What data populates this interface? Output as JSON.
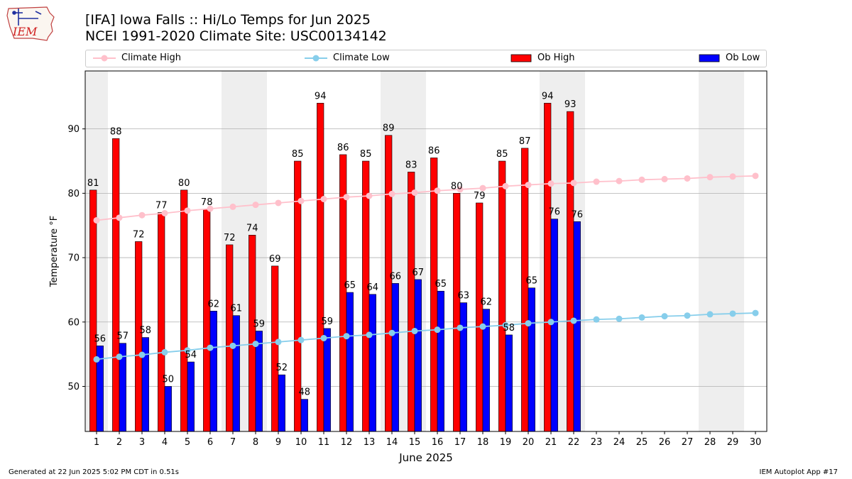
{
  "header": {
    "title_line1": "[IFA] Iowa Falls :: Hi/Lo Temps for Jun 2025",
    "title_line2": "NCEI 1991-2020 Climate Site: USC00134142",
    "logo_text": "IEM"
  },
  "legend": {
    "climate_high": "Climate High",
    "climate_low": "Climate Low",
    "ob_high": "Ob High",
    "ob_low": "Ob Low"
  },
  "colors": {
    "ob_high": "#ff0000",
    "ob_low": "#0000ff",
    "climate_high": "#ffc0cb",
    "climate_low": "#87ceeb",
    "weekend_shade": "#eeeeee",
    "grid": "#b0b0b0"
  },
  "footer": {
    "generated": "Generated at 22 Jun 2025 5:02 PM CDT in 0.51s",
    "app": "IEM Autoplot App #17"
  },
  "chart_data": {
    "type": "bar",
    "xlabel": "June 2025",
    "ylabel": "Temperature °F",
    "ylim": [
      43,
      99
    ],
    "yticks": [
      50,
      60,
      70,
      80,
      90
    ],
    "xlim": [
      0.5,
      30.5
    ],
    "grid": "horizontal",
    "legend_position": "top",
    "days": [
      1,
      2,
      3,
      4,
      5,
      6,
      7,
      8,
      9,
      10,
      11,
      12,
      13,
      14,
      15,
      16,
      17,
      18,
      19,
      20,
      21,
      22,
      23,
      24,
      25,
      26,
      27,
      28,
      29,
      30
    ],
    "shaded_day_ranges": [
      [
        0.5,
        1.5
      ],
      [
        6.5,
        8.5
      ],
      [
        13.5,
        15.5
      ],
      [
        20.5,
        22.5
      ],
      [
        27.5,
        29.5
      ]
    ],
    "series": [
      {
        "name": "Ob High",
        "kind": "bar",
        "values": [
          80.5,
          88.5,
          72.5,
          77,
          80.5,
          77.5,
          72,
          73.5,
          68.7,
          85,
          94,
          86,
          85,
          89,
          83.3,
          85.5,
          80,
          78.5,
          85,
          87,
          94,
          92.7
        ],
        "labels": [
          "81",
          "88",
          "72",
          "77",
          "80",
          "78",
          "72",
          "74",
          "69",
          "85",
          "94",
          "86",
          "85",
          "89",
          "83",
          "86",
          "80",
          "79",
          "85",
          "87",
          "94",
          "93"
        ]
      },
      {
        "name": "Ob Low",
        "kind": "bar",
        "values": [
          56.3,
          56.7,
          57.6,
          50,
          53.8,
          61.7,
          61,
          58.6,
          51.8,
          48,
          59,
          64.6,
          64.3,
          66,
          66.6,
          64.8,
          63,
          62,
          58,
          65.3,
          76,
          75.6
        ],
        "labels": [
          "56",
          "57",
          "58",
          "50",
          "54",
          "62",
          "61",
          "59",
          "52",
          "48",
          "59",
          "65",
          "64",
          "66",
          "67",
          "65",
          "63",
          "62",
          "58",
          "65",
          "76",
          "76"
        ]
      },
      {
        "name": "Climate High",
        "kind": "line",
        "values": [
          75.8,
          76.2,
          76.6,
          76.9,
          77.3,
          77.6,
          77.9,
          78.2,
          78.5,
          78.8,
          79.1,
          79.4,
          79.6,
          79.9,
          80.1,
          80.4,
          80.6,
          80.8,
          81.1,
          81.3,
          81.5,
          81.6,
          81.8,
          81.9,
          82.1,
          82.2,
          82.3,
          82.5,
          82.6,
          82.7
        ]
      },
      {
        "name": "Climate Low",
        "kind": "line",
        "values": [
          54.2,
          54.6,
          54.9,
          55.3,
          55.6,
          56.0,
          56.3,
          56.6,
          56.9,
          57.2,
          57.5,
          57.8,
          58.0,
          58.3,
          58.6,
          58.8,
          59.1,
          59.3,
          59.5,
          59.8,
          60.0,
          60.2,
          60.4,
          60.5,
          60.7,
          60.9,
          61.0,
          61.2,
          61.3,
          61.4
        ]
      }
    ]
  }
}
